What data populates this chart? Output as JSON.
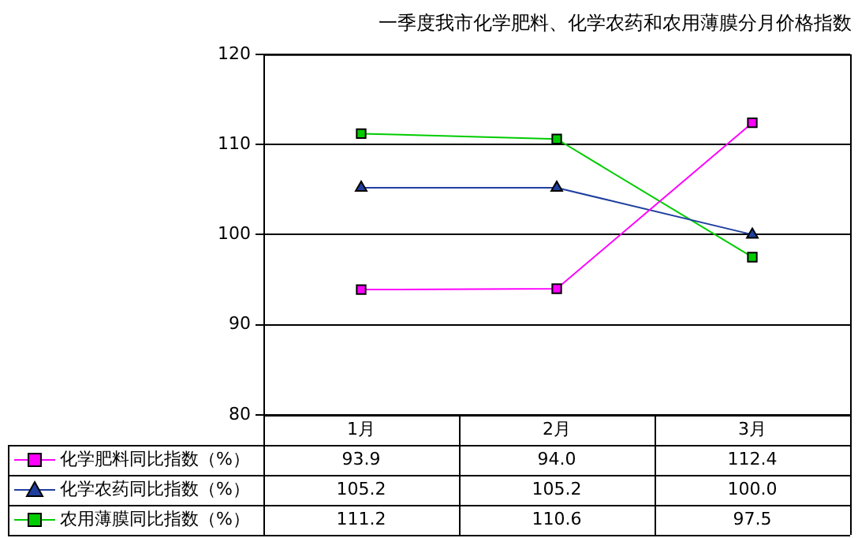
{
  "chart_data": {
    "type": "line",
    "title": "一季度我市化学肥料、化学农药和农用薄膜分月价格指数",
    "categories": [
      "1月",
      "2月",
      "3月"
    ],
    "series": [
      {
        "name": "化学肥料同比指数（%）",
        "color": "#ff00ff",
        "marker": "square",
        "values": [
          93.9,
          94.0,
          112.4
        ],
        "value_labels": [
          "93.9",
          "94.0",
          "112.4"
        ]
      },
      {
        "name": "化学农药同比指数（%）",
        "color": "#1f3f9f",
        "marker": "triangle",
        "values": [
          105.2,
          105.2,
          100.0
        ],
        "value_labels": [
          "105.2",
          "105.2",
          "100.0"
        ]
      },
      {
        "name": "农用薄膜同比指数（%）",
        "color": "#00cc00",
        "marker": "square",
        "values": [
          111.2,
          110.6,
          97.5
        ],
        "value_labels": [
          "111.2",
          "110.6",
          "97.5"
        ]
      }
    ],
    "ylim": [
      80,
      120
    ],
    "yticks": [
      80,
      90,
      100,
      110,
      120
    ],
    "grid": "y",
    "legend": "bottom"
  }
}
